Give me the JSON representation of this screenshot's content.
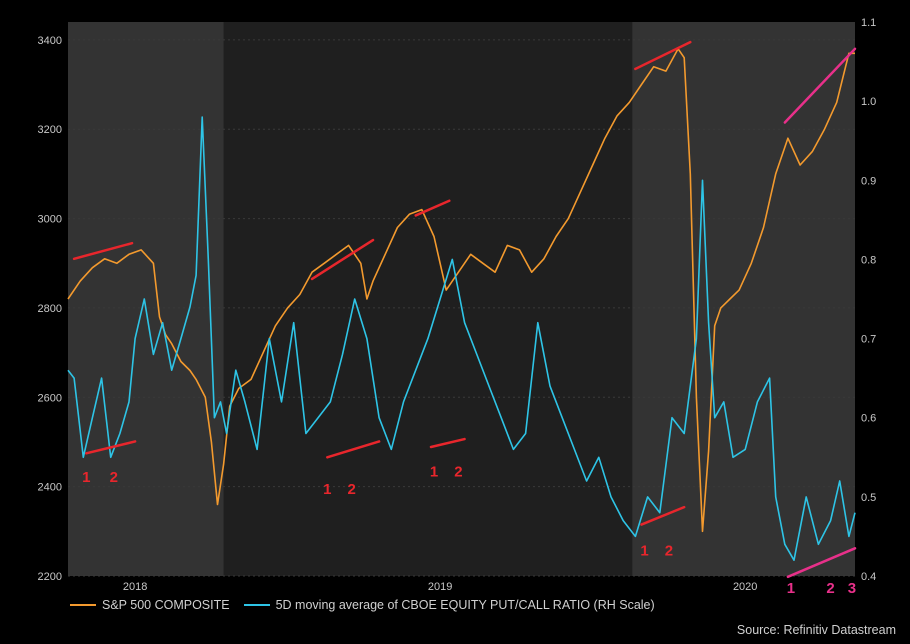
{
  "chart_data": {
    "type": "line",
    "title": "",
    "grid": true,
    "left_axis": {
      "ylim": [
        2200,
        3440
      ],
      "ticks": [
        2200,
        2400,
        2600,
        2800,
        3000,
        3200,
        3400
      ]
    },
    "right_axis": {
      "ylim": [
        0.4,
        1.1
      ],
      "ticks": [
        0.4,
        0.5,
        0.6,
        0.7,
        0.8,
        0.9,
        1.0,
        1.1
      ],
      "tick_labels": [
        "0.4",
        "0.5",
        "0.6",
        "0.7",
        "0.8",
        "0.9",
        "1.0",
        "1.1"
      ]
    },
    "xlim": [
      2017.78,
      2020.36
    ],
    "x_ticks": [
      {
        "x": 2018.0,
        "label": "2018"
      },
      {
        "x": 2019.0,
        "label": "2019"
      },
      {
        "x": 2020.0,
        "label": "2020"
      }
    ],
    "shaded_periods": [
      [
        2017.78,
        2018.29
      ],
      [
        2019.63,
        2020.36
      ]
    ],
    "series": [
      {
        "name": "S&P 500 COMPOSITE",
        "axis": "left",
        "color": "#f39a2e",
        "x": [
          2017.78,
          2017.82,
          2017.86,
          2017.9,
          2017.94,
          2017.98,
          2018.02,
          2018.06,
          2018.08,
          2018.1,
          2018.12,
          2018.15,
          2018.18,
          2018.2,
          2018.23,
          2018.25,
          2018.27,
          2018.29,
          2018.31,
          2018.34,
          2018.38,
          2018.42,
          2018.46,
          2018.5,
          2018.54,
          2018.58,
          2018.62,
          2018.66,
          2018.7,
          2018.74,
          2018.76,
          2018.78,
          2018.82,
          2018.86,
          2018.9,
          2018.94,
          2018.98,
          2019.02,
          2019.06,
          2019.1,
          2019.14,
          2019.18,
          2019.22,
          2019.26,
          2019.3,
          2019.34,
          2019.38,
          2019.42,
          2019.46,
          2019.5,
          2019.54,
          2019.58,
          2019.62,
          2019.66,
          2019.7,
          2019.74,
          2019.78,
          2019.8,
          2019.82,
          2019.84,
          2019.86,
          2019.88,
          2019.9,
          2019.92,
          2019.95,
          2019.98,
          2020.02,
          2020.06,
          2020.1,
          2020.14,
          2020.18,
          2020.22,
          2020.26,
          2020.3,
          2020.34,
          2020.36
        ],
        "values": [
          2820,
          2860,
          2890,
          2910,
          2900,
          2920,
          2930,
          2900,
          2780,
          2740,
          2720,
          2680,
          2660,
          2640,
          2600,
          2500,
          2360,
          2450,
          2580,
          2620,
          2640,
          2700,
          2760,
          2800,
          2830,
          2880,
          2900,
          2920,
          2940,
          2900,
          2820,
          2860,
          2920,
          2980,
          3010,
          3020,
          2960,
          2840,
          2880,
          2920,
          2900,
          2880,
          2940,
          2930,
          2880,
          2910,
          2960,
          3000,
          3060,
          3120,
          3180,
          3230,
          3260,
          3300,
          3340,
          3330,
          3380,
          3360,
          3100,
          2600,
          2300,
          2480,
          2760,
          2800,
          2820,
          2840,
          2900,
          2980,
          3100,
          3180,
          3120,
          3150,
          3200,
          3260,
          3370,
          3370
        ]
      },
      {
        "name": "5D moving average of CBOE EQUITY PUT/CALL RATIO (RH Scale)",
        "axis": "right",
        "color": "#2ec4e6",
        "x": [
          2017.78,
          2017.8,
          2017.83,
          2017.86,
          2017.89,
          2017.92,
          2017.95,
          2017.98,
          2018.0,
          2018.03,
          2018.06,
          2018.09,
          2018.12,
          2018.15,
          2018.18,
          2018.2,
          2018.22,
          2018.24,
          2018.26,
          2018.28,
          2018.3,
          2018.33,
          2018.36,
          2018.4,
          2018.44,
          2018.48,
          2018.52,
          2018.56,
          2018.6,
          2018.64,
          2018.68,
          2018.72,
          2018.76,
          2018.8,
          2018.84,
          2018.88,
          2018.92,
          2018.96,
          2019.0,
          2019.04,
          2019.08,
          2019.12,
          2019.16,
          2019.2,
          2019.24,
          2019.28,
          2019.32,
          2019.36,
          2019.4,
          2019.44,
          2019.48,
          2019.52,
          2019.56,
          2019.6,
          2019.64,
          2019.68,
          2019.72,
          2019.76,
          2019.8,
          2019.84,
          2019.86,
          2019.88,
          2019.9,
          2019.93,
          2019.96,
          2020.0,
          2020.04,
          2020.08,
          2020.1,
          2020.13,
          2020.16,
          2020.2,
          2020.24,
          2020.28,
          2020.31,
          2020.34,
          2020.36
        ],
        "values": [
          0.66,
          0.65,
          0.55,
          0.6,
          0.65,
          0.55,
          0.58,
          0.62,
          0.7,
          0.75,
          0.68,
          0.72,
          0.66,
          0.7,
          0.74,
          0.78,
          0.98,
          0.8,
          0.6,
          0.62,
          0.58,
          0.66,
          0.62,
          0.56,
          0.7,
          0.62,
          0.72,
          0.58,
          0.6,
          0.62,
          0.68,
          0.75,
          0.7,
          0.6,
          0.56,
          0.62,
          0.66,
          0.7,
          0.75,
          0.8,
          0.72,
          0.68,
          0.64,
          0.6,
          0.56,
          0.58,
          0.72,
          0.64,
          0.6,
          0.56,
          0.52,
          0.55,
          0.5,
          0.47,
          0.45,
          0.5,
          0.48,
          0.6,
          0.58,
          0.7,
          0.9,
          0.72,
          0.6,
          0.62,
          0.55,
          0.56,
          0.62,
          0.65,
          0.5,
          0.44,
          0.42,
          0.5,
          0.44,
          0.47,
          0.52,
          0.45,
          0.48
        ]
      }
    ],
    "annotation_color_red": "#e8262c",
    "annotation_color_pink": "#e8308a",
    "trend_lines": [
      {
        "axis": "left",
        "from": [
          2017.8,
          2910
        ],
        "to": [
          2017.99,
          2945
        ],
        "color": "red"
      },
      {
        "axis": "left",
        "from": [
          2018.58,
          2865
        ],
        "to": [
          2018.78,
          2952
        ],
        "color": "red"
      },
      {
        "axis": "left",
        "from": [
          2018.92,
          3007
        ],
        "to": [
          2019.03,
          3040
        ],
        "color": "red"
      },
      {
        "axis": "left",
        "from": [
          2019.64,
          3335
        ],
        "to": [
          2019.82,
          3395
        ],
        "color": "red"
      },
      {
        "axis": "left",
        "from": [
          2020.13,
          3215
        ],
        "to": [
          2020.36,
          3380
        ],
        "color": "pink"
      },
      {
        "axis": "right",
        "from": [
          2017.84,
          0.555
        ],
        "to": [
          2018.0,
          0.57
        ],
        "color": "red"
      },
      {
        "axis": "right",
        "from": [
          2018.63,
          0.55
        ],
        "to": [
          2018.8,
          0.57
        ],
        "color": "red"
      },
      {
        "axis": "right",
        "from": [
          2018.97,
          0.563
        ],
        "to": [
          2019.08,
          0.573
        ],
        "color": "red"
      },
      {
        "axis": "right",
        "from": [
          2019.66,
          0.465
        ],
        "to": [
          2019.8,
          0.487
        ],
        "color": "red"
      },
      {
        "axis": "right",
        "from": [
          2020.14,
          0.399
        ],
        "to": [
          2020.36,
          0.435
        ],
        "color": "pink"
      }
    ],
    "annotations": [
      {
        "text": "1",
        "axis": "right",
        "x": 2017.84,
        "y": 0.525,
        "color": "red"
      },
      {
        "text": "2",
        "axis": "right",
        "x": 2017.93,
        "y": 0.525,
        "color": "red"
      },
      {
        "text": "1",
        "axis": "right",
        "x": 2018.63,
        "y": 0.51,
        "color": "red"
      },
      {
        "text": "2",
        "axis": "right",
        "x": 2018.71,
        "y": 0.51,
        "color": "red"
      },
      {
        "text": "1",
        "axis": "right",
        "x": 2018.98,
        "y": 0.532,
        "color": "red"
      },
      {
        "text": "2",
        "axis": "right",
        "x": 2019.06,
        "y": 0.532,
        "color": "red"
      },
      {
        "text": "1",
        "axis": "right",
        "x": 2019.67,
        "y": 0.432,
        "color": "red"
      },
      {
        "text": "2",
        "axis": "right",
        "x": 2019.75,
        "y": 0.432,
        "color": "red"
      },
      {
        "text": "1",
        "axis": "right",
        "x": 2020.15,
        "y": 0.385,
        "color": "pink"
      },
      {
        "text": "2",
        "axis": "right",
        "x": 2020.28,
        "y": 0.385,
        "color": "pink"
      },
      {
        "text": "3",
        "axis": "right",
        "x": 2020.35,
        "y": 0.385,
        "color": "pink"
      }
    ]
  },
  "legend": {
    "sp500": "S&P 500 COMPOSITE",
    "putcall": "5D moving average of CBOE EQUITY PUT/CALL RATIO (RH Scale)"
  },
  "source": "Source: Refinitiv Datastream"
}
